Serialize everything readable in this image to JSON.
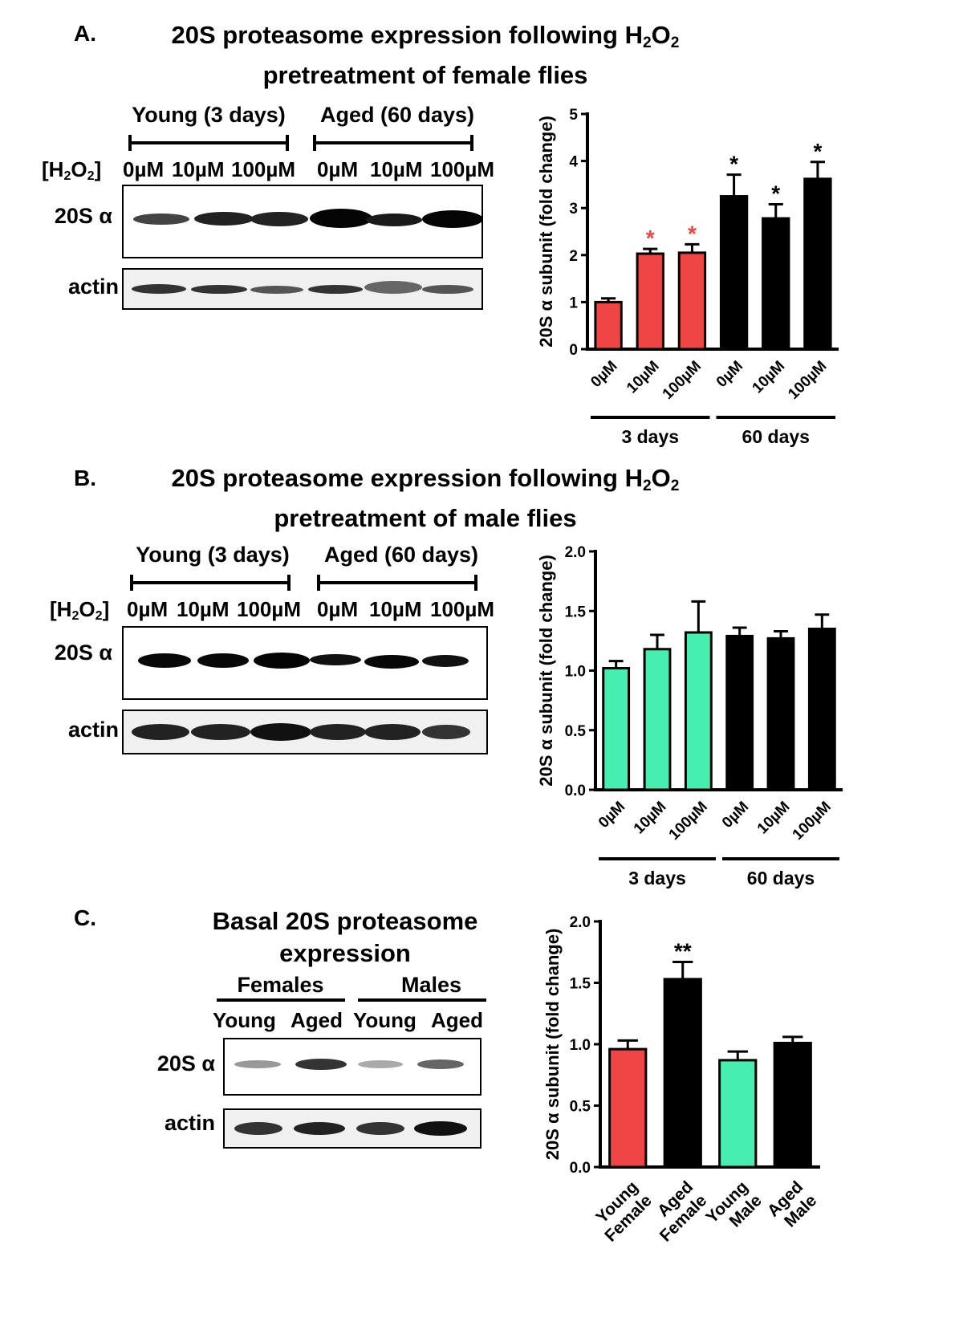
{
  "colors": {
    "female": "#f04545",
    "male": "#46eeb0",
    "aged": "#000000",
    "sig_red": "#f04545"
  },
  "panelA": {
    "letter": "A.",
    "title_line1_pre": "20S proteasome expression following  H",
    "title_sub1": "2",
    "title_mid": "O",
    "title_sub2": "2",
    "title_line2": "pretreatment of female flies",
    "group_young": "Young (3 days)",
    "group_aged": "Aged (60 days)",
    "h2o2_pre": "[H",
    "h2o2_sub1": "2",
    "h2o2_mid": "O",
    "h2o2_sub2": "2",
    "h2o2_post": "]",
    "lanes": [
      "0µM",
      "10µM",
      "100µM",
      "0µM",
      "10µM",
      "100µM"
    ],
    "row1": "20S α",
    "row2": "actin"
  },
  "panelB": {
    "letter": "B.",
    "title_line1_pre": "20S proteasome expression following  H",
    "title_sub1": "2",
    "title_mid": "O",
    "title_sub2": "2",
    "title_line2": "pretreatment of male flies",
    "group_young": "Young (3 days)",
    "group_aged": "Aged (60 days)",
    "h2o2_pre": "[H",
    "h2o2_sub1": "2",
    "h2o2_mid": "O",
    "h2o2_sub2": "2",
    "h2o2_post": "]",
    "lanes": [
      "0µM",
      "10µM",
      "100µM",
      "0µM",
      "10µM",
      "100µM"
    ],
    "row1": "20S α",
    "row2": "actin"
  },
  "panelC": {
    "letter": "C.",
    "title_line1": "Basal 20S proteasome",
    "title_line2": "expression",
    "group_f": "Females",
    "group_m": "Males",
    "lanes": [
      "Young",
      "Aged",
      "Young",
      "Aged"
    ],
    "row1": "20S α",
    "row2": "actin"
  },
  "chart_data": [
    {
      "type": "bar",
      "ylabel": "20S α subunit (fold change)",
      "ylim": [
        0,
        5
      ],
      "yticks": [
        "0",
        "1",
        "2",
        "3",
        "4",
        "5"
      ],
      "categories": [
        "0µM",
        "10µM",
        "100µM",
        "0µM",
        "10µM",
        "100µM"
      ],
      "values": [
        1.0,
        2.03,
        2.05,
        3.25,
        2.78,
        3.62
      ],
      "errors": [
        0.08,
        0.1,
        0.18,
        0.46,
        0.3,
        0.36
      ],
      "colors": [
        "#f04545",
        "#f04545",
        "#f04545",
        "#000000",
        "#000000",
        "#000000"
      ],
      "significance": [
        "",
        "*",
        "*",
        "*",
        "*",
        "*"
      ],
      "sig_colors": [
        "",
        "#f04545",
        "#f04545",
        "#000000",
        "#000000",
        "#000000"
      ],
      "groups": [
        {
          "label": "3 days",
          "from": 0,
          "to": 2
        },
        {
          "label": "60 days",
          "from": 3,
          "to": 5
        }
      ],
      "grid": false
    },
    {
      "type": "bar",
      "ylabel": "20S α subunit (fold change)",
      "ylim": [
        0,
        2.0
      ],
      "yticks": [
        "0.0",
        "0.5",
        "1.0",
        "1.5",
        "2.0"
      ],
      "categories": [
        "0µM",
        "10µM",
        "100µM",
        "0µM",
        "10µM",
        "100µM"
      ],
      "values": [
        1.02,
        1.18,
        1.32,
        1.29,
        1.27,
        1.35
      ],
      "errors": [
        0.06,
        0.12,
        0.26,
        0.07,
        0.06,
        0.12
      ],
      "colors": [
        "#46eeb0",
        "#46eeb0",
        "#46eeb0",
        "#000000",
        "#000000",
        "#000000"
      ],
      "significance": [
        "",
        "",
        "",
        "",
        "",
        ""
      ],
      "sig_colors": [
        "",
        "",
        "",
        "",
        "",
        ""
      ],
      "groups": [
        {
          "label": "3 days",
          "from": 0,
          "to": 2
        },
        {
          "label": "60 days",
          "from": 3,
          "to": 5
        }
      ],
      "grid": false
    },
    {
      "type": "bar",
      "ylabel": "20S α subunit (fold change)",
      "ylim": [
        0,
        2.0
      ],
      "yticks": [
        "0.0",
        "0.5",
        "1.0",
        "1.5",
        "2.0"
      ],
      "categories": [
        "Young\nFemale",
        "Aged\nFemale",
        "Young\nMale",
        "Aged\nMale"
      ],
      "values": [
        0.96,
        1.53,
        0.87,
        1.01
      ],
      "errors": [
        0.07,
        0.14,
        0.07,
        0.05
      ],
      "colors": [
        "#f04545",
        "#000000",
        "#46eeb0",
        "#000000"
      ],
      "significance": [
        "",
        "**",
        "",
        ""
      ],
      "sig_colors": [
        "",
        "#000000",
        "",
        ""
      ],
      "groups": [],
      "grid": false
    }
  ]
}
